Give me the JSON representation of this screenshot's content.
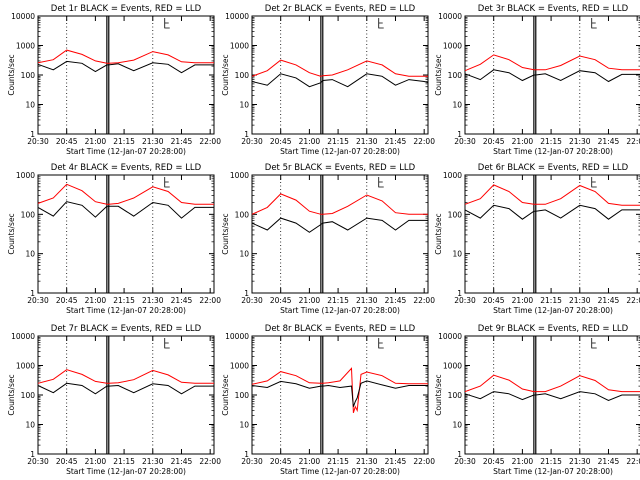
{
  "chart_data": [
    {
      "type": "line",
      "panel": 1,
      "title": "Det 1r BLACK = Events, RED = LLD",
      "xlabel": "Start Time (12-Jan-07 20:28:00)",
      "ylabel": "Counts/sec",
      "yscale": "log",
      "ylim": [
        1,
        10000
      ],
      "xlim": [
        "20:30",
        "22:02"
      ],
      "x_ticks": [
        "20:30",
        "20:45",
        "21:00",
        "21:15",
        "21:30",
        "21:45",
        "22:00"
      ],
      "y_ticks": [
        "1",
        "10",
        "100",
        "1000",
        "10000"
      ],
      "vlines_dotted": [
        "20:45",
        "21:30"
      ],
      "vlines_solid": [
        "21:06",
        "21:07"
      ],
      "series": [
        {
          "name": "LLD",
          "color": "#ff0000",
          "times": [
            "20:30",
            "20:38",
            "20:45",
            "20:53",
            "21:00",
            "21:06",
            "21:07",
            "21:12",
            "21:20",
            "21:30",
            "21:38",
            "21:45",
            "21:52",
            "22:00",
            "22:02"
          ],
          "values": [
            260,
            330,
            700,
            500,
            300,
            250,
            250,
            260,
            320,
            620,
            480,
            280,
            260,
            260,
            260
          ]
        },
        {
          "name": "Events",
          "color": "#000000",
          "times": [
            "20:30",
            "20:38",
            "20:45",
            "20:53",
            "21:00",
            "21:06",
            "21:07",
            "21:12",
            "21:20",
            "21:30",
            "21:38",
            "21:45",
            "21:52",
            "22:00",
            "22:02"
          ],
          "values": [
            230,
            150,
            290,
            250,
            130,
            220,
            220,
            240,
            140,
            260,
            230,
            120,
            220,
            220,
            220
          ]
        }
      ]
    },
    {
      "type": "line",
      "panel": 2,
      "title": "Det 2r BLACK = Events, RED = LLD",
      "xlabel": "Start Time (12-Jan-07 20:28:00)",
      "ylabel": "Counts/sec",
      "yscale": "log",
      "ylim": [
        1,
        10000
      ],
      "xlim": [
        "20:30",
        "22:02"
      ],
      "x_ticks": [
        "20:30",
        "20:45",
        "21:00",
        "21:15",
        "21:30",
        "21:45",
        "22:00"
      ],
      "y_ticks": [
        "1",
        "10",
        "100",
        "1000",
        "10000"
      ],
      "vlines_dotted": [
        "20:45",
        "21:30"
      ],
      "vlines_solid": [
        "21:06",
        "21:07"
      ],
      "series": [
        {
          "name": "LLD",
          "color": "#ff0000",
          "times": [
            "20:30",
            "20:38",
            "20:45",
            "20:53",
            "21:00",
            "21:06",
            "21:07",
            "21:12",
            "21:20",
            "21:30",
            "21:38",
            "21:45",
            "21:52",
            "22:00",
            "22:02"
          ],
          "values": [
            90,
            140,
            320,
            220,
            120,
            90,
            95,
            100,
            150,
            300,
            220,
            110,
            90,
            90,
            90
          ]
        },
        {
          "name": "Events",
          "color": "#000000",
          "times": [
            "20:30",
            "20:38",
            "20:45",
            "20:53",
            "21:00",
            "21:06",
            "21:07",
            "21:12",
            "21:20",
            "21:30",
            "21:38",
            "21:45",
            "21:52",
            "22:00",
            "22:02"
          ],
          "values": [
            60,
            45,
            110,
            80,
            40,
            55,
            65,
            70,
            40,
            110,
            90,
            45,
            70,
            60,
            55
          ]
        }
      ]
    },
    {
      "type": "line",
      "panel": 3,
      "title": "Det 3r BLACK = Events, RED = LLD",
      "xlabel": "Start Time (12-Jan-07 20:28:00)",
      "ylabel": "Counts/sec",
      "yscale": "log",
      "ylim": [
        1,
        10000
      ],
      "xlim": [
        "20:30",
        "22:02"
      ],
      "x_ticks": [
        "20:30",
        "20:45",
        "21:00",
        "21:15",
        "21:30",
        "21:45",
        "22:00"
      ],
      "y_ticks": [
        "1",
        "10",
        "100",
        "1000",
        "10000"
      ],
      "vlines_dotted": [
        "20:45",
        "21:30"
      ],
      "vlines_solid": [
        "21:06",
        "21:07"
      ],
      "series": [
        {
          "name": "LLD",
          "color": "#ff0000",
          "times": [
            "20:30",
            "20:38",
            "20:45",
            "20:53",
            "21:00",
            "21:06",
            "21:07",
            "21:12",
            "21:20",
            "21:30",
            "21:38",
            "21:45",
            "21:52",
            "22:00",
            "22:02"
          ],
          "values": [
            140,
            230,
            480,
            330,
            180,
            150,
            150,
            150,
            210,
            440,
            330,
            170,
            150,
            150,
            150
          ]
        },
        {
          "name": "Events",
          "color": "#000000",
          "times": [
            "20:30",
            "20:38",
            "20:45",
            "20:53",
            "21:00",
            "21:06",
            "21:07",
            "21:12",
            "21:20",
            "21:30",
            "21:38",
            "21:45",
            "21:52",
            "22:00",
            "22:02"
          ],
          "values": [
            110,
            70,
            150,
            120,
            65,
            100,
            100,
            110,
            65,
            140,
            120,
            60,
            105,
            105,
            105
          ]
        }
      ]
    },
    {
      "type": "line",
      "panel": 4,
      "title": "Det 4r BLACK = Events, RED = LLD",
      "xlabel": "Start Time (12-Jan-07 20:28:00)",
      "ylabel": "Counts/sec",
      "yscale": "log",
      "ylim": [
        1,
        1000
      ],
      "xlim": [
        "20:30",
        "22:02"
      ],
      "x_ticks": [
        "20:30",
        "20:45",
        "21:00",
        "21:15",
        "21:30",
        "21:45",
        "22:00"
      ],
      "y_ticks": [
        "1",
        "10",
        "100",
        "1000"
      ],
      "vlines_dotted": [
        "20:45",
        "21:30"
      ],
      "vlines_solid": [
        "21:06",
        "21:07"
      ],
      "series": [
        {
          "name": "LLD",
          "color": "#ff0000",
          "times": [
            "20:30",
            "20:38",
            "20:45",
            "20:53",
            "21:00",
            "21:06",
            "21:07",
            "21:12",
            "21:20",
            "21:30",
            "21:38",
            "21:45",
            "21:52",
            "22:00",
            "22:02"
          ],
          "values": [
            190,
            260,
            580,
            400,
            210,
            180,
            180,
            190,
            260,
            500,
            380,
            200,
            180,
            180,
            180
          ]
        },
        {
          "name": "Events",
          "color": "#000000",
          "times": [
            "20:30",
            "20:38",
            "20:45",
            "20:53",
            "21:00",
            "21:06",
            "21:07",
            "21:12",
            "21:20",
            "21:30",
            "21:38",
            "21:45",
            "21:52",
            "22:00",
            "22:02"
          ],
          "values": [
            150,
            90,
            210,
            170,
            85,
            160,
            160,
            160,
            90,
            200,
            170,
            80,
            150,
            150,
            150
          ]
        }
      ]
    },
    {
      "type": "line",
      "panel": 5,
      "title": "Det 5r BLACK = Events, RED = LLD",
      "xlabel": "Start Time (12-Jan-07 20:28:00)",
      "ylabel": "Counts/sec",
      "yscale": "log",
      "ylim": [
        1,
        1000
      ],
      "xlim": [
        "20:30",
        "22:02"
      ],
      "x_ticks": [
        "20:30",
        "20:45",
        "21:00",
        "21:15",
        "21:30",
        "21:45",
        "22:00"
      ],
      "y_ticks": [
        "1",
        "10",
        "100",
        "1000"
      ],
      "vlines_dotted": [
        "20:45",
        "21:30"
      ],
      "vlines_solid": [
        "21:06",
        "21:07"
      ],
      "series": [
        {
          "name": "LLD",
          "color": "#ff0000",
          "times": [
            "20:30",
            "20:38",
            "20:45",
            "20:53",
            "21:00",
            "21:06",
            "21:07",
            "21:12",
            "21:20",
            "21:30",
            "21:38",
            "21:45",
            "21:52",
            "22:00",
            "22:02"
          ],
          "values": [
            100,
            150,
            330,
            230,
            120,
            100,
            100,
            105,
            160,
            310,
            220,
            110,
            100,
            100,
            100
          ]
        },
        {
          "name": "Events",
          "color": "#000000",
          "times": [
            "20:30",
            "20:38",
            "20:45",
            "20:53",
            "21:00",
            "21:06",
            "21:07",
            "21:12",
            "21:20",
            "21:30",
            "21:38",
            "21:45",
            "21:52",
            "22:00",
            "22:02"
          ],
          "values": [
            60,
            40,
            80,
            60,
            35,
            55,
            60,
            65,
            40,
            80,
            70,
            40,
            70,
            70,
            70
          ]
        }
      ]
    },
    {
      "type": "line",
      "panel": 6,
      "title": "Det 6r BLACK = Events, RED = LLD",
      "xlabel": "Start Time (12-Jan-07 20:28:00)",
      "ylabel": "Counts/sec",
      "yscale": "log",
      "ylim": [
        1,
        1000
      ],
      "xlim": [
        "20:30",
        "22:02"
      ],
      "x_ticks": [
        "20:30",
        "20:45",
        "21:00",
        "21:15",
        "21:30",
        "21:45",
        "22:00"
      ],
      "y_ticks": [
        "1",
        "10",
        "100",
        "1000"
      ],
      "vlines_dotted": [
        "20:45",
        "21:30"
      ],
      "vlines_solid": [
        "21:06",
        "21:07"
      ],
      "series": [
        {
          "name": "LLD",
          "color": "#ff0000",
          "times": [
            "20:30",
            "20:38",
            "20:45",
            "20:53",
            "21:00",
            "21:06",
            "21:07",
            "21:12",
            "21:20",
            "21:30",
            "21:38",
            "21:45",
            "21:52",
            "22:00",
            "22:02"
          ],
          "values": [
            180,
            250,
            560,
            380,
            200,
            180,
            180,
            180,
            250,
            540,
            380,
            190,
            170,
            170,
            170
          ]
        },
        {
          "name": "Events",
          "color": "#000000",
          "times": [
            "20:30",
            "20:38",
            "20:45",
            "20:53",
            "21:00",
            "21:06",
            "21:07",
            "21:12",
            "21:20",
            "21:30",
            "21:38",
            "21:45",
            "21:52",
            "22:00",
            "22:02"
          ],
          "values": [
            130,
            80,
            170,
            140,
            75,
            120,
            120,
            130,
            80,
            170,
            140,
            75,
            130,
            130,
            130
          ]
        }
      ]
    },
    {
      "type": "line",
      "panel": 7,
      "title": "Det 7r BLACK = Events, RED = LLD",
      "xlabel": "Start Time (12-Jan-07 20:28:00)",
      "ylabel": "Counts/sec",
      "yscale": "log",
      "ylim": [
        1,
        10000
      ],
      "xlim": [
        "20:30",
        "22:02"
      ],
      "x_ticks": [
        "20:30",
        "20:45",
        "21:00",
        "21:15",
        "21:30",
        "21:45",
        "22:00"
      ],
      "y_ticks": [
        "1",
        "10",
        "100",
        "1000",
        "10000"
      ],
      "vlines_dotted": [
        "20:45",
        "21:30"
      ],
      "vlines_solid": [
        "21:06",
        "21:07"
      ],
      "series": [
        {
          "name": "LLD",
          "color": "#ff0000",
          "times": [
            "20:30",
            "20:38",
            "20:45",
            "20:53",
            "21:00",
            "21:06",
            "21:07",
            "21:12",
            "21:20",
            "21:30",
            "21:38",
            "21:45",
            "21:52",
            "22:00",
            "22:02"
          ],
          "values": [
            250,
            340,
            720,
            500,
            290,
            250,
            250,
            260,
            330,
            680,
            480,
            270,
            250,
            250,
            250
          ]
        },
        {
          "name": "Events",
          "color": "#000000",
          "times": [
            "20:30",
            "20:38",
            "20:45",
            "20:53",
            "21:00",
            "21:06",
            "21:07",
            "21:12",
            "21:20",
            "21:30",
            "21:38",
            "21:45",
            "21:52",
            "22:00",
            "22:02"
          ],
          "values": [
            210,
            120,
            250,
            210,
            110,
            200,
            200,
            210,
            120,
            240,
            210,
            110,
            200,
            200,
            200
          ]
        }
      ]
    },
    {
      "type": "line",
      "panel": 8,
      "title": "Det 8r BLACK = Events, RED = LLD",
      "xlabel": "Start Time (12-Jan-07 20:28:00)",
      "ylabel": "Counts/sec",
      "yscale": "log",
      "ylim": [
        1,
        10000
      ],
      "xlim": [
        "20:30",
        "22:02"
      ],
      "x_ticks": [
        "20:30",
        "20:45",
        "21:00",
        "21:15",
        "21:30",
        "21:45",
        "22:00"
      ],
      "y_ticks": [
        "1",
        "10",
        "100",
        "1000",
        "10000"
      ],
      "vlines_dotted": [
        "20:45",
        "21:30"
      ],
      "vlines_solid": [
        "21:06",
        "21:07"
      ],
      "series": [
        {
          "name": "LLD",
          "color": "#ff0000",
          "times": [
            "20:30",
            "20:38",
            "20:45",
            "20:53",
            "21:00",
            "21:06",
            "21:07",
            "21:10",
            "21:16",
            "21:22",
            "21:23",
            "21:24",
            "21:25",
            "21:27",
            "21:30",
            "21:38",
            "21:45",
            "21:52",
            "22:00",
            "22:02"
          ],
          "values": [
            230,
            300,
            620,
            450,
            260,
            250,
            250,
            260,
            300,
            800,
            25,
            40,
            30,
            500,
            600,
            450,
            250,
            240,
            240,
            240
          ]
        },
        {
          "name": "Events",
          "color": "#000000",
          "times": [
            "20:30",
            "20:38",
            "20:45",
            "20:53",
            "21:00",
            "21:06",
            "21:07",
            "21:10",
            "21:16",
            "21:22",
            "21:23",
            "21:24",
            "21:25",
            "21:27",
            "21:30",
            "21:38",
            "21:45",
            "21:52",
            "22:00",
            "22:02"
          ],
          "values": [
            210,
            180,
            290,
            240,
            170,
            200,
            200,
            210,
            180,
            200,
            40,
            60,
            80,
            250,
            300,
            220,
            170,
            210,
            210,
            210
          ]
        }
      ]
    },
    {
      "type": "line",
      "panel": 9,
      "title": "Det 9r BLACK = Events, RED = LLD",
      "xlabel": "Start Time (12-Jan-07 20:28:00)",
      "ylabel": "Counts/sec",
      "yscale": "log",
      "ylim": [
        1,
        10000
      ],
      "xlim": [
        "20:30",
        "22:02"
      ],
      "x_ticks": [
        "20:30",
        "20:45",
        "21:00",
        "21:15",
        "21:30",
        "21:45",
        "22:00"
      ],
      "y_ticks": [
        "1",
        "10",
        "100",
        "1000",
        "10000"
      ],
      "vlines_dotted": [
        "20:45",
        "21:30"
      ],
      "vlines_solid": [
        "21:06",
        "21:07"
      ],
      "series": [
        {
          "name": "LLD",
          "color": "#ff0000",
          "times": [
            "20:30",
            "20:38",
            "20:45",
            "20:53",
            "21:00",
            "21:06",
            "21:07",
            "21:12",
            "21:20",
            "21:30",
            "21:38",
            "21:45",
            "21:52",
            "22:00",
            "22:02"
          ],
          "values": [
            130,
            200,
            470,
            320,
            160,
            130,
            130,
            130,
            200,
            450,
            310,
            150,
            130,
            130,
            130
          ]
        },
        {
          "name": "Events",
          "color": "#000000",
          "times": [
            "20:30",
            "20:38",
            "20:45",
            "20:53",
            "21:00",
            "21:06",
            "21:07",
            "21:12",
            "21:20",
            "21:30",
            "21:38",
            "21:45",
            "21:52",
            "22:00",
            "22:02"
          ],
          "values": [
            110,
            75,
            130,
            110,
            70,
            100,
            100,
            110,
            75,
            130,
            110,
            65,
            100,
            100,
            100
          ]
        }
      ]
    }
  ]
}
